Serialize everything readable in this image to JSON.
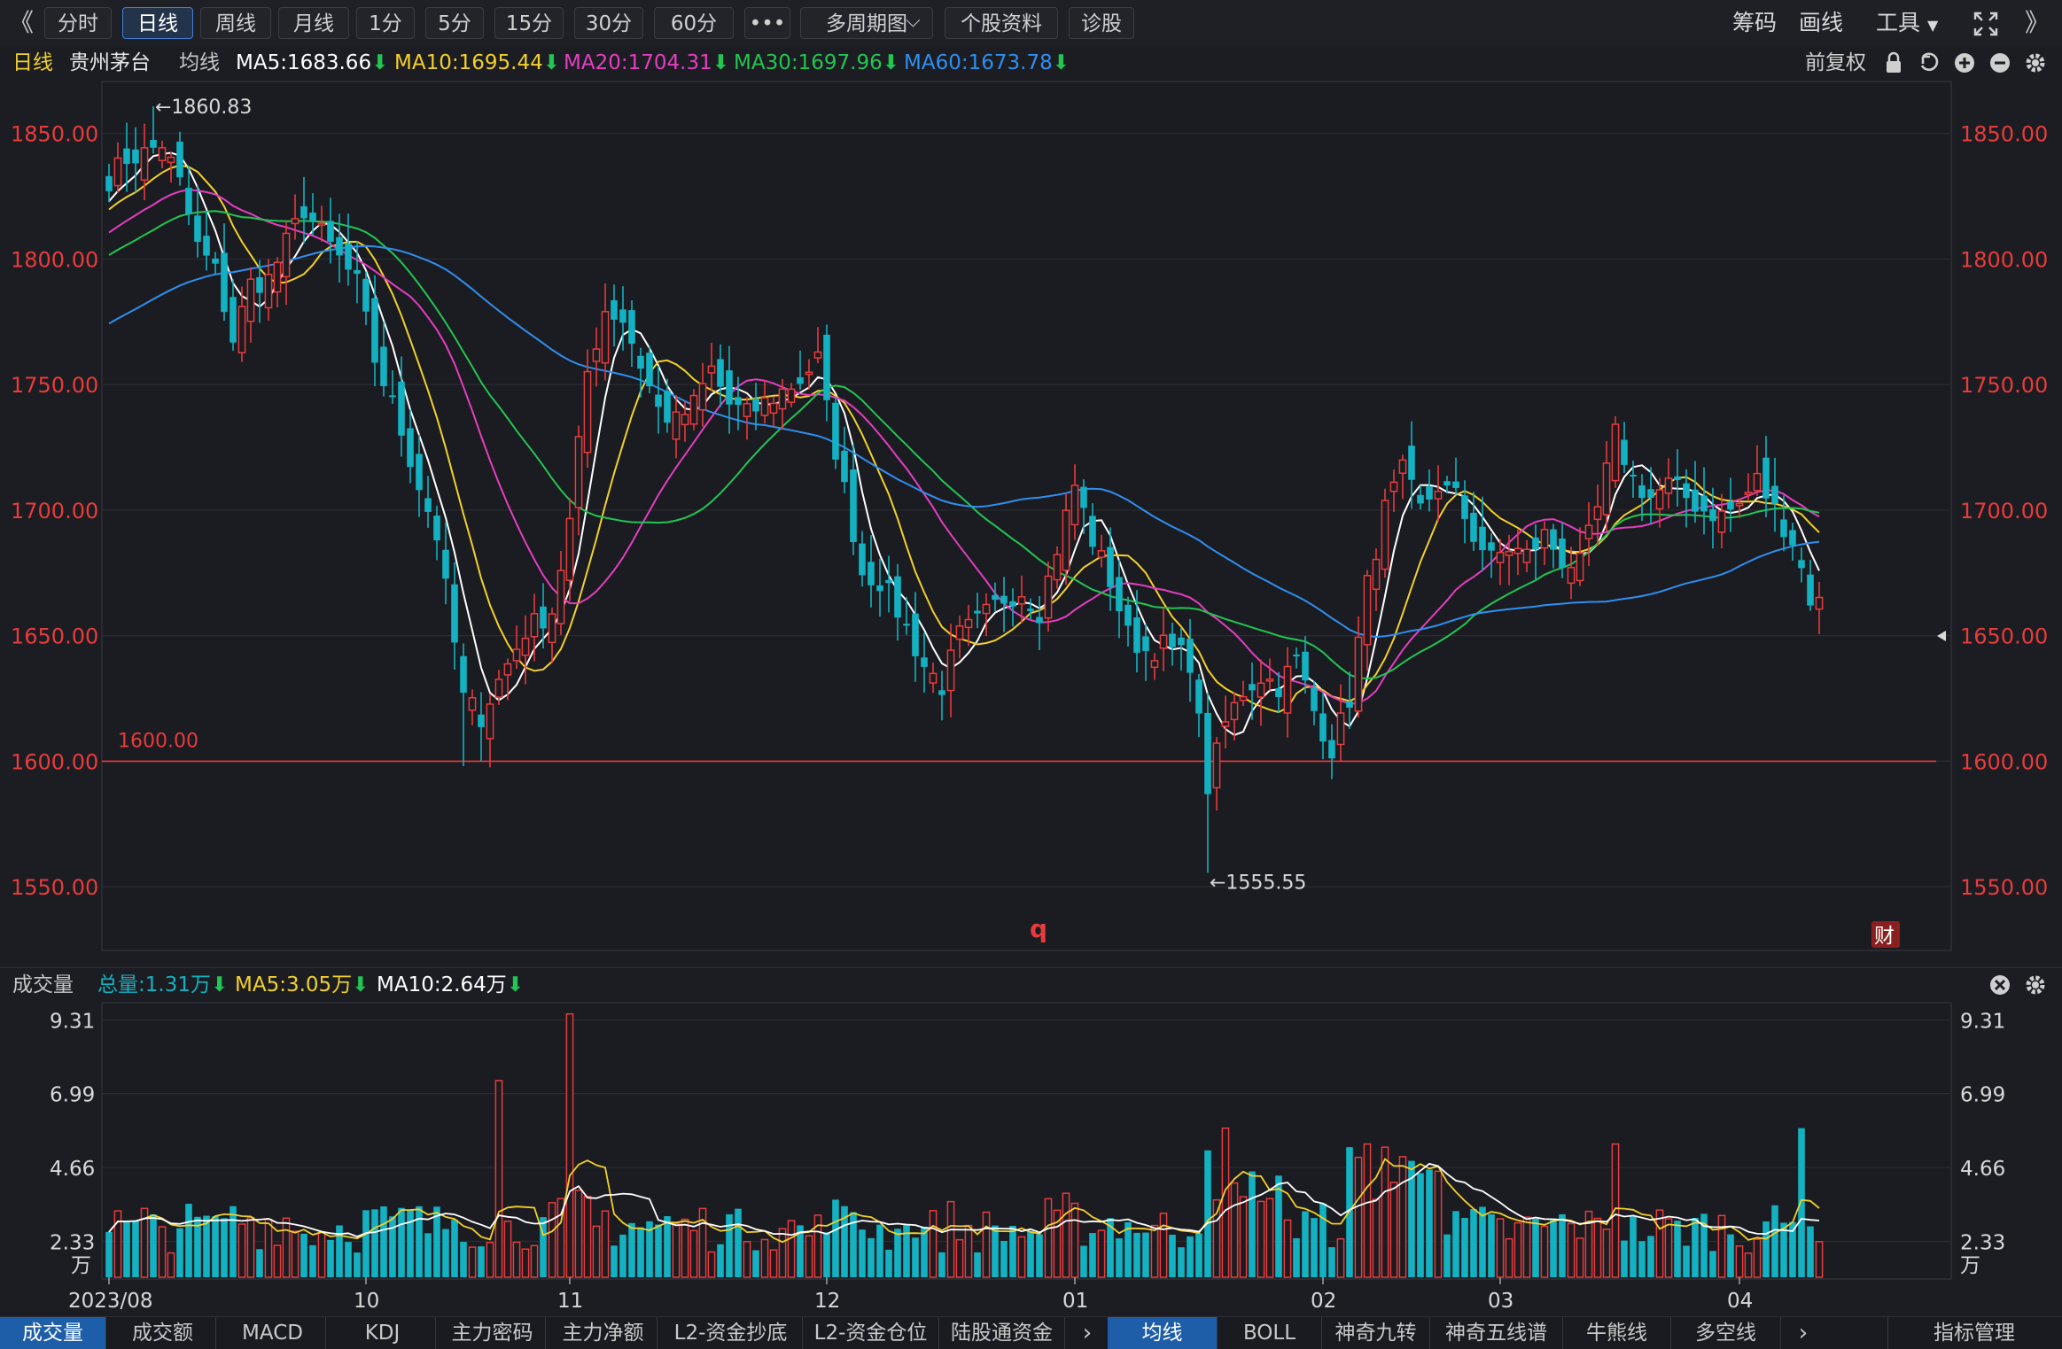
{
  "toolbar": {
    "back_icon": "double-left-chevron",
    "tabs": [
      {
        "label": "分时",
        "active": false
      },
      {
        "label": "日线",
        "active": true
      },
      {
        "label": "周线",
        "active": false
      },
      {
        "label": "月线",
        "active": false
      },
      {
        "label": "1分",
        "active": false
      },
      {
        "label": "5分",
        "active": false
      },
      {
        "label": "15分",
        "active": false
      },
      {
        "label": "30分",
        "active": false
      },
      {
        "label": "60分",
        "active": false
      },
      {
        "label": "•••",
        "active": false
      },
      {
        "label": "多周期图",
        "active": false
      },
      {
        "label": "个股资料",
        "active": false
      },
      {
        "label": "诊股",
        "active": false
      }
    ],
    "right": {
      "chips": "筹码",
      "draw": "画线",
      "tools": "工具"
    }
  },
  "ma_bar": {
    "period": "日线",
    "stock": "贵州茅台",
    "avg_label": "均线",
    "ma5": "MA5:1683.66",
    "ma10": "MA10:1695.44",
    "ma20": "MA20:1704.31",
    "ma30": "MA30:1697.96",
    "ma60": "MA60:1673.78",
    "right_label": "前复权"
  },
  "volume_bar": {
    "title": "成交量",
    "total": "总量:1.31万",
    "ma5": "MA5:3.05万",
    "ma10": "MA10:2.64万"
  },
  "colors": {
    "up": "#e83b3b",
    "down": "#13b1c1",
    "ma5": "#ffffff",
    "ma10": "#f2d02c",
    "ma20": "#e43ec0",
    "ma30": "#23c552",
    "ma60": "#2f8ff0",
    "ref_line": "#e83b3b"
  },
  "chart_data": {
    "type": "candlestick",
    "y_range": [
      1525,
      1870
    ],
    "price_ticks": [
      "1850.00",
      "1800.00",
      "1750.00",
      "1700.00",
      "1650.00",
      "1600.00",
      "1550.00"
    ],
    "ref_line": {
      "value": 1600,
      "label": "1600.00"
    },
    "high_note": {
      "value": 1860.83,
      "label": "←1860.83"
    },
    "low_note": {
      "value": 1555.55,
      "label": "←1555.55"
    },
    "q_marker": "q",
    "fin_marker": "财",
    "x_labels": [
      {
        "label": "2023/08",
        "index": 0
      },
      {
        "label": "10",
        "index": 29
      },
      {
        "label": "11",
        "index": 52
      },
      {
        "label": "12",
        "index": 81
      },
      {
        "label": "01",
        "index": 109
      },
      {
        "label": "02",
        "index": 137
      },
      {
        "label": "03",
        "index": 157
      },
      {
        "label": "04",
        "index": 184
      }
    ],
    "close_anchors": [
      [
        0,
        1832
      ],
      [
        2,
        1840
      ],
      [
        4,
        1842
      ],
      [
        6,
        1846
      ],
      [
        8,
        1830
      ],
      [
        10,
        1805
      ],
      [
        12,
        1795
      ],
      [
        14,
        1768
      ],
      [
        16,
        1790
      ],
      [
        18,
        1792
      ],
      [
        22,
        1820
      ],
      [
        24,
        1810
      ],
      [
        26,
        1800
      ],
      [
        28,
        1790
      ],
      [
        29,
        1775
      ],
      [
        30,
        1760
      ],
      [
        32,
        1742
      ],
      [
        35,
        1710
      ],
      [
        37,
        1690
      ],
      [
        40,
        1625
      ],
      [
        42,
        1618
      ],
      [
        44,
        1632
      ],
      [
        47,
        1652
      ],
      [
        50,
        1660
      ],
      [
        52,
        1695
      ],
      [
        54,
        1755
      ],
      [
        56,
        1780
      ],
      [
        58,
        1776
      ],
      [
        60,
        1758
      ],
      [
        62,
        1740
      ],
      [
        64,
        1735
      ],
      [
        66,
        1742
      ],
      [
        68,
        1756
      ],
      [
        70,
        1742
      ],
      [
        72,
        1738
      ],
      [
        75,
        1745
      ],
      [
        78,
        1752
      ],
      [
        80,
        1760
      ],
      [
        81,
        1740
      ],
      [
        83,
        1708
      ],
      [
        85,
        1675
      ],
      [
        87,
        1672
      ],
      [
        89,
        1660
      ],
      [
        92,
        1638
      ],
      [
        94,
        1630
      ],
      [
        96,
        1650
      ],
      [
        98,
        1655
      ],
      [
        101,
        1665
      ],
      [
        103,
        1668
      ],
      [
        105,
        1660
      ],
      [
        107,
        1685
      ],
      [
        109,
        1710
      ],
      [
        111,
        1688
      ],
      [
        113,
        1672
      ],
      [
        115,
        1650
      ],
      [
        117,
        1644
      ],
      [
        119,
        1646
      ],
      [
        122,
        1640
      ],
      [
        124,
        1590
      ],
      [
        126,
        1615
      ],
      [
        128,
        1628
      ],
      [
        130,
        1634
      ],
      [
        132,
        1630
      ],
      [
        134,
        1640
      ],
      [
        136,
        1620
      ],
      [
        138,
        1605
      ],
      [
        140,
        1625
      ],
      [
        142,
        1670
      ],
      [
        144,
        1700
      ],
      [
        146,
        1715
      ],
      [
        148,
        1700
      ],
      [
        150,
        1710
      ],
      [
        152,
        1705
      ],
      [
        154,
        1690
      ],
      [
        156,
        1680
      ],
      [
        158,
        1685
      ],
      [
        160,
        1682
      ],
      [
        162,
        1690
      ],
      [
        164,
        1680
      ],
      [
        166,
        1678
      ],
      [
        168,
        1700
      ],
      [
        170,
        1730
      ],
      [
        172,
        1712
      ],
      [
        174,
        1705
      ],
      [
        176,
        1710
      ],
      [
        178,
        1705
      ],
      [
        180,
        1700
      ],
      [
        182,
        1698
      ],
      [
        184,
        1702
      ],
      [
        186,
        1712
      ],
      [
        188,
        1700
      ],
      [
        190,
        1688
      ],
      [
        192,
        1665
      ],
      [
        193,
        1663
      ]
    ],
    "volume": {
      "y_range": [
        1.2,
        9.8
      ],
      "ticks": [
        "9.31",
        "6.99",
        "4.66",
        "2.33"
      ],
      "unit": "万",
      "spikes": [
        {
          "index": 44,
          "value": 7.4
        },
        {
          "index": 52,
          "value": 9.5
        },
        {
          "index": 124,
          "value": 5.2
        },
        {
          "index": 126,
          "value": 5.9
        },
        {
          "index": 140,
          "value": 5.3
        },
        {
          "index": 142,
          "value": 5.4
        },
        {
          "index": 144,
          "value": 5.3
        },
        {
          "index": 146,
          "value": 5.0
        },
        {
          "index": 170,
          "value": 5.4
        },
        {
          "index": 191,
          "value": 5.9
        }
      ],
      "base_level": 2.4
    }
  },
  "bottom_tabs": {
    "left": [
      "成交量",
      "成交额",
      "MACD",
      "KDJ",
      "主力密码",
      "主力净额",
      "L2-资金抄底",
      "L2-资金仓位",
      "陆股通资金"
    ],
    "right": [
      "均线",
      "BOLL",
      "神奇九转",
      "神奇五线谱",
      "牛熊线",
      "多空线"
    ],
    "manage": "指标管理"
  }
}
